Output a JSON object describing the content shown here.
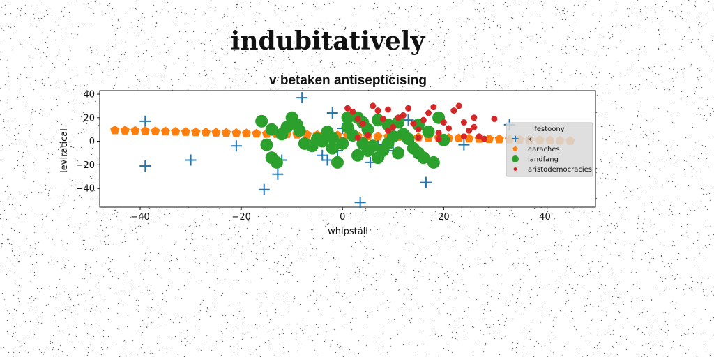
{
  "chart_data": {
    "type": "scatter",
    "suptitle": "indubitatively",
    "title": "v betaken antisepticising",
    "xlabel": "whipstall",
    "ylabel": "leviratical",
    "xlim": [
      -48,
      50
    ],
    "ylim": [
      -56,
      43
    ],
    "xticks": [
      -40,
      -20,
      0,
      20,
      40
    ],
    "yticks": [
      -40,
      -20,
      0,
      20,
      40
    ],
    "grid": false,
    "legend": {
      "title": "festoony",
      "placement": "right"
    },
    "series": [
      {
        "name": "k",
        "marker": "plus",
        "color": "#1f77b4",
        "points": [
          [
            -39,
            17
          ],
          [
            -39,
            -21
          ],
          [
            -30,
            -16
          ],
          [
            -21,
            -4
          ],
          [
            -15.5,
            -41
          ],
          [
            -14,
            -14
          ],
          [
            -12.8,
            -28
          ],
          [
            -12,
            -16
          ],
          [
            -8,
            37
          ],
          [
            -4,
            -12
          ],
          [
            -3,
            -16
          ],
          [
            -2,
            24
          ],
          [
            -1,
            -8
          ],
          [
            0,
            11
          ],
          [
            3.5,
            -52
          ],
          [
            5.5,
            -18
          ],
          [
            7,
            -3
          ],
          [
            9,
            -4
          ],
          [
            10,
            -8
          ],
          [
            13,
            18
          ],
          [
            16.5,
            -35
          ],
          [
            24,
            -3
          ],
          [
            33,
            14
          ]
        ]
      },
      {
        "name": "earaches",
        "marker": "pentagon",
        "color": "#ff7f0e",
        "points": [
          [
            -45,
            9.3
          ],
          [
            -43,
            9.1
          ],
          [
            -41,
            8.9
          ],
          [
            -39,
            8.7
          ],
          [
            -37,
            8.5
          ],
          [
            -35,
            8.3
          ],
          [
            -33,
            8.1
          ],
          [
            -31,
            7.9
          ],
          [
            -29,
            7.7
          ],
          [
            -27,
            7.5
          ],
          [
            -25,
            7.3
          ],
          [
            -23,
            7.1
          ],
          [
            -21,
            6.9
          ],
          [
            -19,
            6.7
          ],
          [
            -17,
            6.5
          ],
          [
            -15,
            6.3
          ],
          [
            -13,
            6.1
          ],
          [
            -11,
            5.9
          ],
          [
            -9,
            5.7
          ],
          [
            -7,
            5.5
          ],
          [
            -5,
            5.3
          ],
          [
            -3,
            5.1
          ],
          [
            -1,
            4.9
          ],
          [
            1,
            4.7
          ],
          [
            3,
            4.5
          ],
          [
            5,
            4.3
          ],
          [
            7,
            4.1
          ],
          [
            9,
            3.9
          ],
          [
            11,
            3.7
          ],
          [
            13,
            3.5
          ],
          [
            15,
            3.3
          ],
          [
            17,
            3.1
          ],
          [
            19,
            2.9
          ],
          [
            21,
            2.7
          ],
          [
            23,
            2.5
          ],
          [
            25,
            2.3
          ],
          [
            27,
            2.1
          ],
          [
            29,
            1.9
          ],
          [
            31,
            1.7
          ],
          [
            33,
            1.5
          ],
          [
            35,
            1.3
          ],
          [
            37,
            1.1
          ],
          [
            39,
            0.9
          ],
          [
            41,
            0.7
          ],
          [
            43,
            0.5
          ],
          [
            45,
            0.3
          ]
        ]
      },
      {
        "name": "landfang",
        "marker": "circle",
        "color": "#2ca02c",
        "points": [
          [
            -16,
            17
          ],
          [
            -15,
            -3
          ],
          [
            -14,
            10
          ],
          [
            -14,
            -14
          ],
          [
            -13,
            -18
          ],
          [
            -12,
            6
          ],
          [
            -11,
            12
          ],
          [
            -10,
            20
          ],
          [
            -9,
            14
          ],
          [
            -8.5,
            9
          ],
          [
            -7.5,
            -2
          ],
          [
            -6,
            -4
          ],
          [
            -5,
            2
          ],
          [
            -4,
            0
          ],
          [
            -3,
            8
          ],
          [
            -2,
            3
          ],
          [
            -1,
            -18
          ],
          [
            1,
            12
          ],
          [
            2,
            5
          ],
          [
            3,
            -12
          ],
          [
            4,
            -2
          ],
          [
            5,
            10
          ],
          [
            6,
            -4
          ],
          [
            7,
            18
          ],
          [
            8,
            -8
          ],
          [
            9,
            14
          ],
          [
            10,
            4
          ],
          [
            11,
            -10
          ],
          [
            12,
            6
          ],
          [
            13,
            2
          ],
          [
            14,
            -6
          ],
          [
            15,
            14
          ],
          [
            16,
            -14
          ],
          [
            17,
            8
          ],
          [
            18,
            -18
          ],
          [
            19,
            20
          ],
          [
            20,
            1
          ],
          [
            3,
            20
          ],
          [
            5,
            -8
          ],
          [
            7,
            -14
          ],
          [
            11,
            16
          ],
          [
            15,
            -10
          ],
          [
            -2,
            -6
          ],
          [
            0,
            -2
          ],
          [
            9,
            -2
          ],
          [
            1,
            20
          ],
          [
            4,
            16
          ]
        ]
      },
      {
        "name": "aristodemocracies",
        "marker": "circle",
        "color": "#d62728",
        "points": [
          [
            1,
            28
          ],
          [
            2,
            25
          ],
          [
            3,
            19
          ],
          [
            4,
            15
          ],
          [
            5,
            5
          ],
          [
            6,
            30
          ],
          [
            7,
            26
          ],
          [
            8,
            19
          ],
          [
            9,
            27
          ],
          [
            10,
            12
          ],
          [
            11,
            20
          ],
          [
            12,
            22
          ],
          [
            13,
            28
          ],
          [
            14,
            15
          ],
          [
            15,
            10
          ],
          [
            16,
            18
          ],
          [
            17,
            24
          ],
          [
            18,
            29
          ],
          [
            19,
            7
          ],
          [
            20,
            16
          ],
          [
            21,
            11
          ],
          [
            22,
            26
          ],
          [
            23,
            30
          ],
          [
            24,
            16
          ],
          [
            25,
            9
          ],
          [
            26,
            20
          ],
          [
            27,
            4
          ],
          [
            28,
            2
          ],
          [
            30,
            19
          ],
          [
            24,
            4
          ],
          [
            19,
            2
          ],
          [
            3,
            3
          ],
          [
            9,
            9
          ],
          [
            15,
            3
          ],
          [
            26,
            12
          ]
        ]
      }
    ]
  }
}
